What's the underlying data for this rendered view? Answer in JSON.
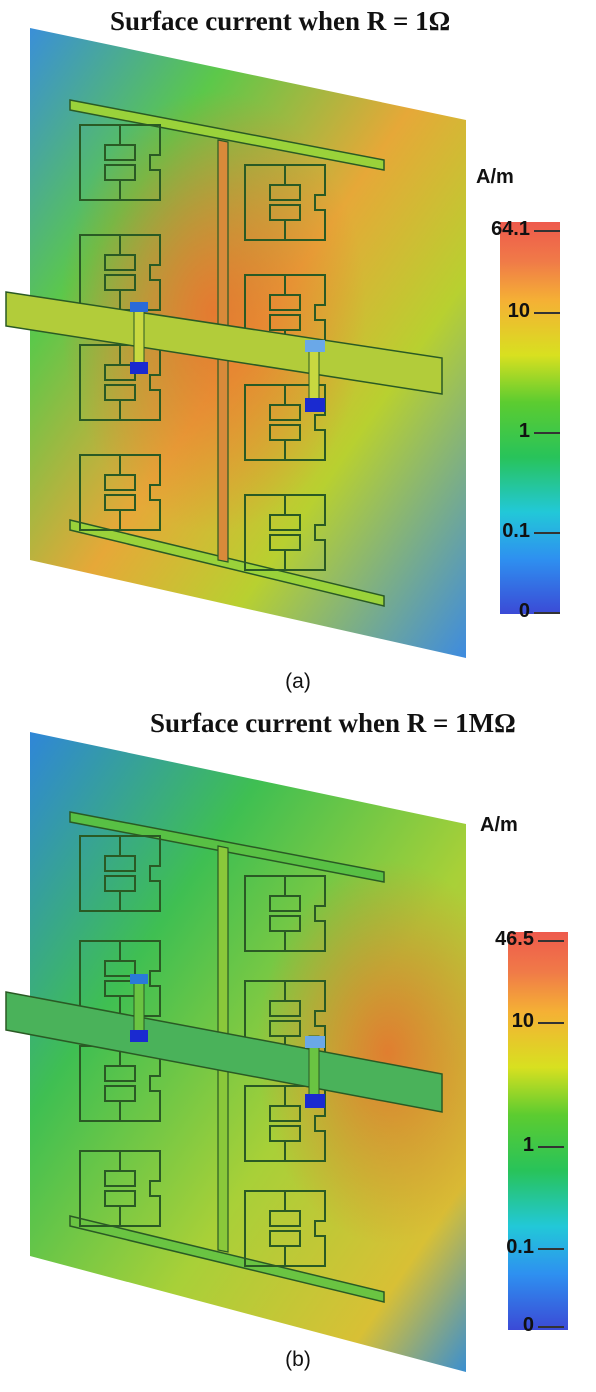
{
  "panels": [
    {
      "id": "a",
      "title": "Surface current when R = 1Ω",
      "unit": "A/m",
      "scale_ticks": [
        "64.1",
        "10",
        "1",
        "0.1",
        "0"
      ],
      "caption": "(a)"
    },
    {
      "id": "b",
      "title": "Surface current when R = 1MΩ",
      "unit": "A/m",
      "scale_ticks": [
        "46.5",
        "10",
        "1",
        "0.1",
        "0"
      ],
      "caption": "(b)"
    }
  ],
  "colors": {
    "low": "#3b4ad6",
    "mid": "#28c35a",
    "high": "#ee5a4c"
  }
}
